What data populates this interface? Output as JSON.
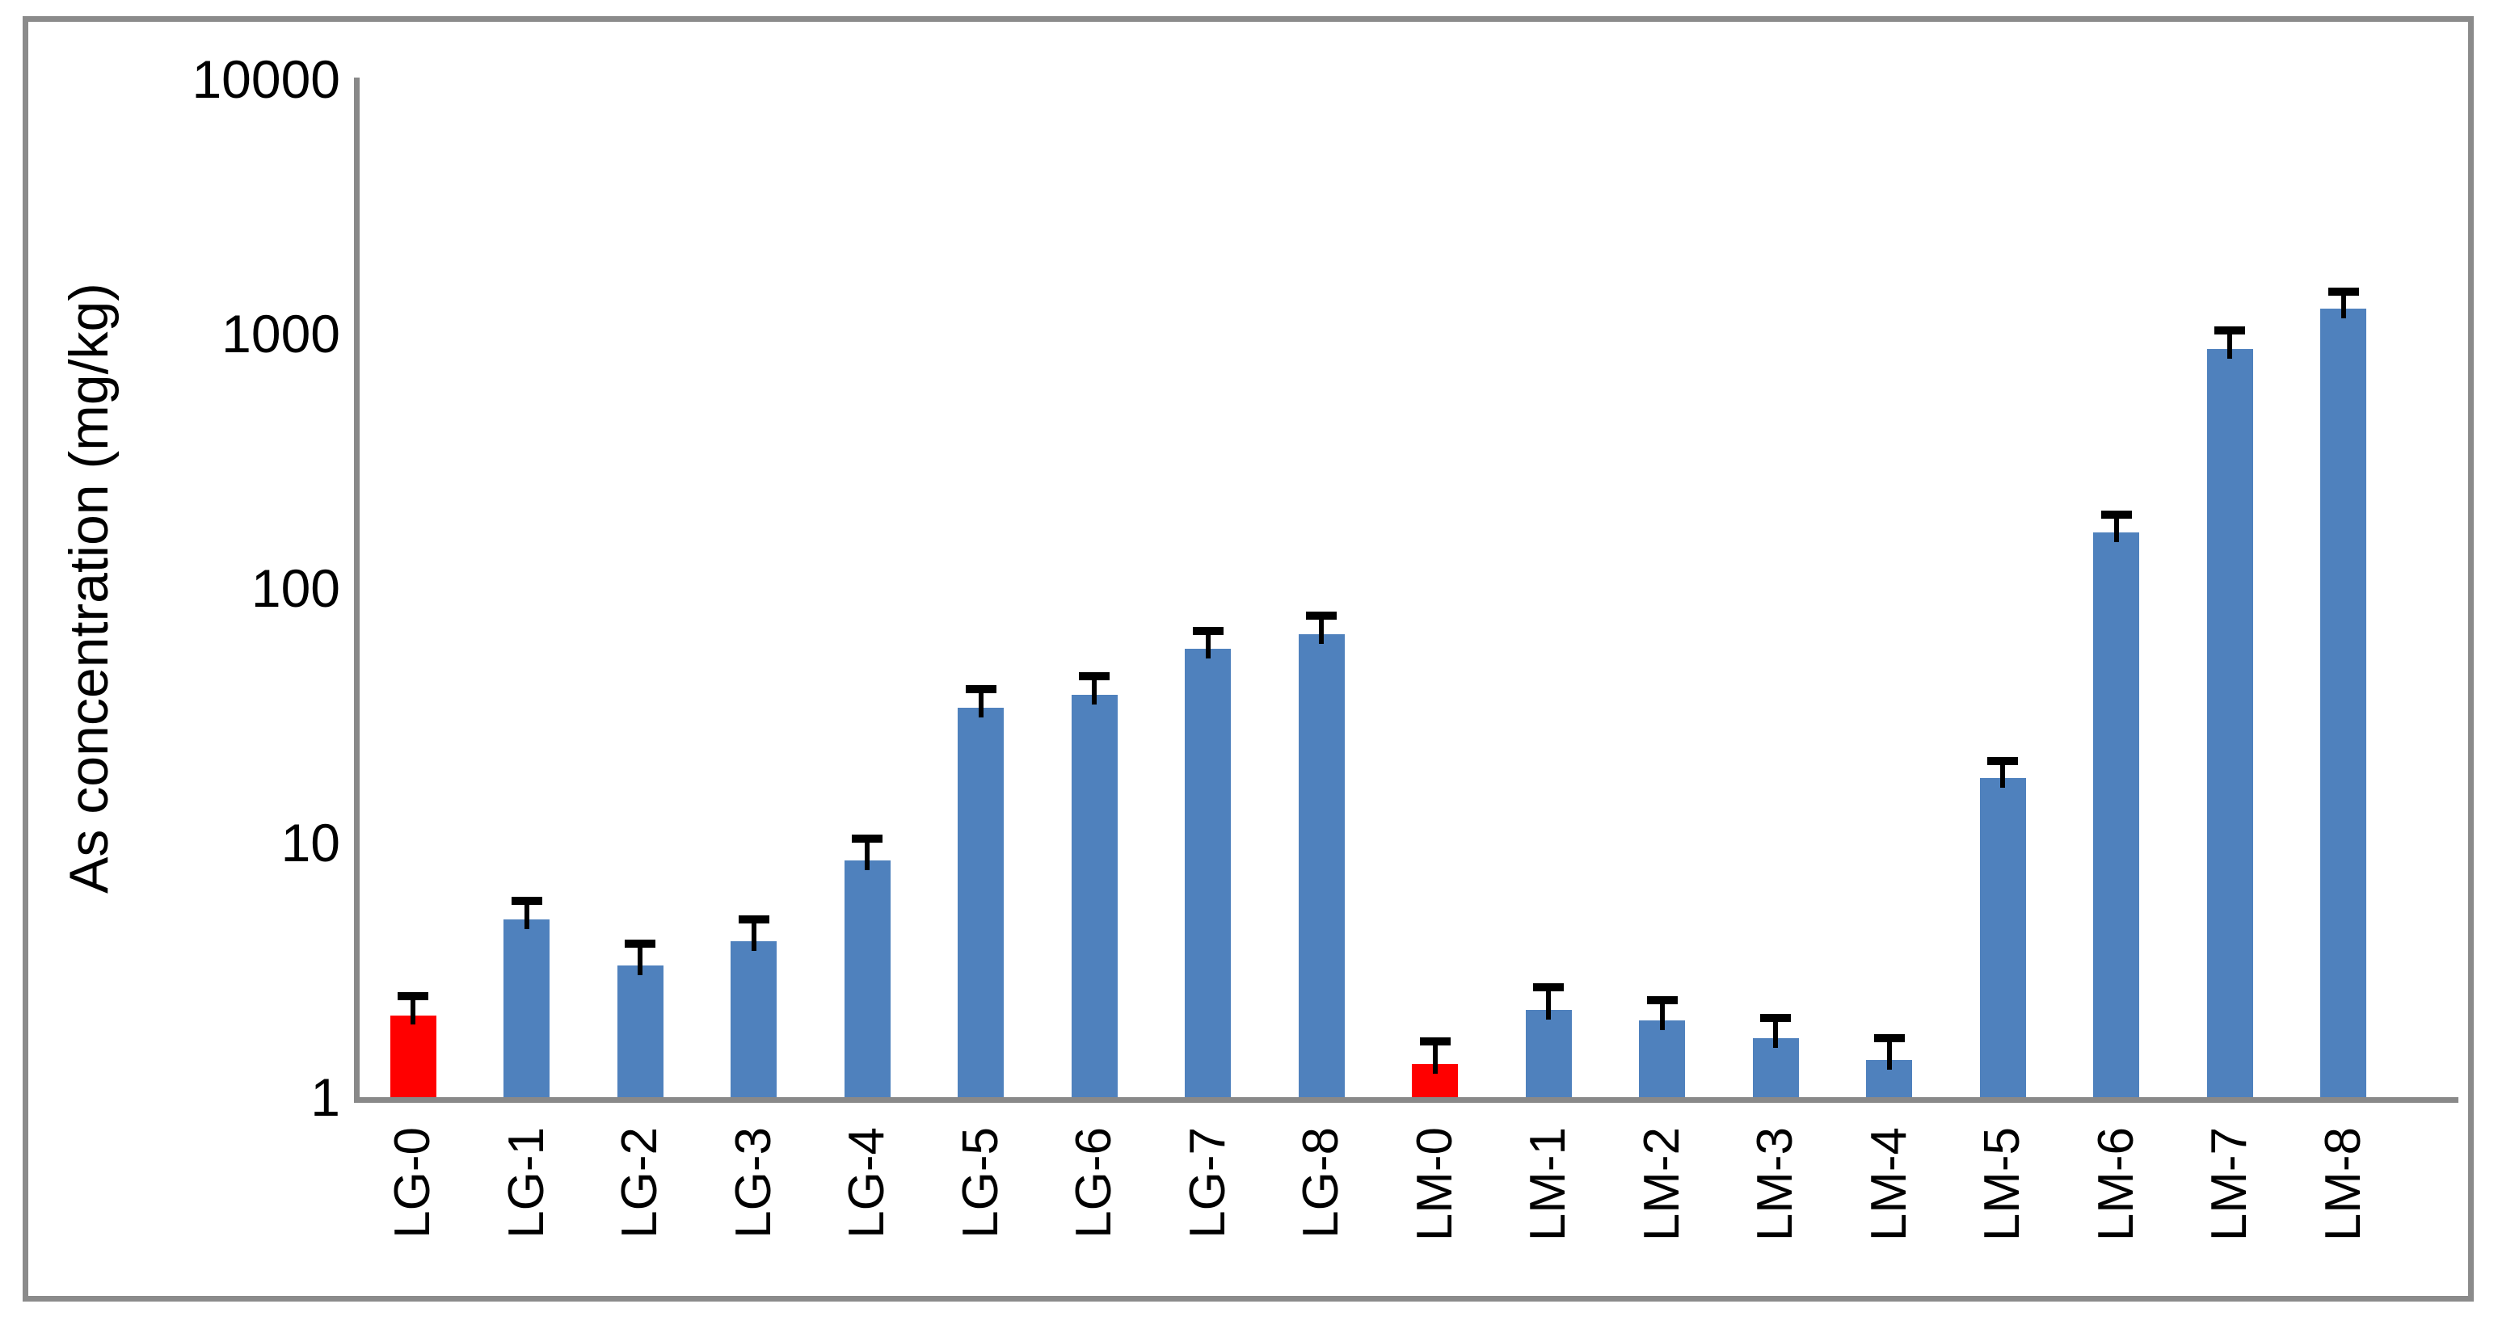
{
  "chart_data": {
    "type": "bar",
    "title": "",
    "xlabel": "",
    "ylabel": "As concentration (mg/kg)",
    "y_scale": "log",
    "ylim": [
      1,
      10000
    ],
    "y_ticks": [
      1,
      10,
      100,
      1000,
      10000
    ],
    "grid": false,
    "legend": "none",
    "categories": [
      "LG-0",
      "LG-1",
      "LG-2",
      "LG-3",
      "LG-4",
      "LG-5",
      "LG-6",
      "LG-7",
      "LG-8",
      "LM-0",
      "LM-1",
      "LM-2",
      "LM-3",
      "LM-4",
      "LM-5",
      "LM-6",
      "LM-7",
      "LM-8"
    ],
    "values": [
      2.1,
      5.0,
      3.3,
      4.1,
      8.5,
      34,
      38,
      58,
      66,
      1.35,
      2.2,
      2.0,
      1.7,
      1.4,
      18,
      165,
      870,
      1250
    ],
    "error_upper": [
      0.4,
      0.9,
      0.7,
      0.9,
      1.9,
      6,
      7,
      10,
      12,
      0.3,
      0.5,
      0.4,
      0.35,
      0.3,
      3,
      30,
      160,
      210
    ],
    "highlighted_categories": [
      "LG-0",
      "LM-0"
    ],
    "colors": {
      "bar": "#4F81BD",
      "highlight_bar": "#FF0000",
      "error_bar": "#000000",
      "axis": "#898989",
      "frame": "#8B8B8B",
      "text": "#000000",
      "background": "#FFFFFF"
    }
  }
}
